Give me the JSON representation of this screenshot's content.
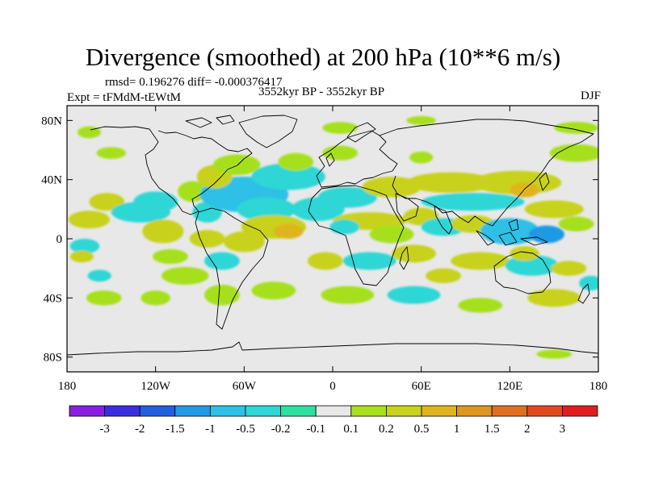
{
  "chart_data": {
    "type": "heatmap",
    "title": "Divergence (smoothed) at 200 hPa (10**6 m/s)",
    "stats_text": "rmsd= 0.196276 diff= -0.000376417",
    "experiment": "Expt = tFMdM-tEWtM",
    "period": "3552kyr BP - 3552kyr BP",
    "season": "DJF",
    "xlabel": "",
    "ylabel": "",
    "x_range": [
      -180,
      180
    ],
    "y_range": [
      -90,
      90
    ],
    "x_ticks": [
      {
        "value": -180,
        "label": "180"
      },
      {
        "value": -120,
        "label": "120W"
      },
      {
        "value": -60,
        "label": "60W"
      },
      {
        "value": 0,
        "label": "0"
      },
      {
        "value": 60,
        "label": "60E"
      },
      {
        "value": 120,
        "label": "120E"
      },
      {
        "value": 180,
        "label": "180"
      }
    ],
    "y_ticks": [
      {
        "value": 80,
        "label": "80N"
      },
      {
        "value": 40,
        "label": "40N"
      },
      {
        "value": 0,
        "label": "0"
      },
      {
        "value": -40,
        "label": "40S"
      },
      {
        "value": -80,
        "label": "80S"
      }
    ],
    "background_color": "#e8e8e8",
    "colorbar": {
      "colors": [
        "#8a1ee0",
        "#3a2ee0",
        "#1f5fe0",
        "#1f9ae6",
        "#2ec0e6",
        "#2ed6d6",
        "#2ee0a0",
        "#e8e8e8",
        "#a6e01e",
        "#c8d21e",
        "#e0b41e",
        "#e0961e",
        "#e0701e",
        "#e04a1e",
        "#e01e1e"
      ],
      "labels": [
        "-3",
        "-2",
        "-1.5",
        "-1",
        "-0.5",
        "-0.2",
        "-0.1",
        "0.1",
        "0.2",
        "0.5",
        "1",
        "1.5",
        "2",
        "3"
      ]
    },
    "anomaly_regions": [
      {
        "lon": -153,
        "lat": 25,
        "rlon": 12,
        "rlat": 6,
        "value": 0.3
      },
      {
        "lon": -165,
        "lat": 13,
        "rlon": 14,
        "rlat": 6,
        "value": 0.5
      },
      {
        "lon": -130,
        "lat": 18,
        "rlon": 20,
        "rlat": 7,
        "value": -0.3
      },
      {
        "lon": -115,
        "lat": 5,
        "rlon": 14,
        "rlat": 8,
        "value": 0.3
      },
      {
        "lon": -120,
        "lat": 25,
        "rlon": 15,
        "rlat": 7,
        "value": -0.3
      },
      {
        "lon": -95,
        "lat": 32,
        "rlon": 10,
        "rlat": 7,
        "value": 0.2
      },
      {
        "lon": -85,
        "lat": 18,
        "rlon": 10,
        "rlat": 7,
        "value": -0.2
      },
      {
        "lon": -60,
        "lat": 30,
        "rlon": 30,
        "rlat": 12,
        "value": -0.5
      },
      {
        "lon": -45,
        "lat": 20,
        "rlon": 20,
        "rlat": 8,
        "value": -0.3
      },
      {
        "lon": -80,
        "lat": 42,
        "rlon": 12,
        "rlat": 8,
        "value": 0.3
      },
      {
        "lon": -65,
        "lat": 50,
        "rlon": 16,
        "rlat": 7,
        "value": 0.2
      },
      {
        "lon": -30,
        "lat": 42,
        "rlon": 25,
        "rlat": 9,
        "value": -0.3
      },
      {
        "lon": -25,
        "lat": 52,
        "rlon": 12,
        "rlat": 6,
        "value": 0.2
      },
      {
        "lon": -40,
        "lat": 8,
        "rlon": 22,
        "rlat": 8,
        "value": 0.5
      },
      {
        "lon": -30,
        "lat": 5,
        "rlon": 10,
        "rlat": 5,
        "value": 1.0
      },
      {
        "lon": -60,
        "lat": -2,
        "rlon": 14,
        "rlat": 7,
        "value": 0.5
      },
      {
        "lon": -85,
        "lat": 0,
        "rlon": 12,
        "rlat": 6,
        "value": 0.3
      },
      {
        "lon": -110,
        "lat": -12,
        "rlon": 12,
        "rlat": 5,
        "value": 0.2
      },
      {
        "lon": -75,
        "lat": -15,
        "rlon": 12,
        "rlat": 6,
        "value": -0.3
      },
      {
        "lon": -100,
        "lat": -25,
        "rlon": 16,
        "rlat": 6,
        "value": 0.2
      },
      {
        "lon": -158,
        "lat": -25,
        "rlon": 8,
        "rlat": 4,
        "value": -0.2
      },
      {
        "lon": -168,
        "lat": -5,
        "rlon": 10,
        "rlat": 5,
        "value": -0.2
      },
      {
        "lon": -170,
        "lat": -12,
        "rlon": 8,
        "rlat": 4,
        "value": 0.3
      },
      {
        "lon": -155,
        "lat": -40,
        "rlon": 12,
        "rlat": 5,
        "value": 0.2
      },
      {
        "lon": -120,
        "lat": -40,
        "rlon": 10,
        "rlat": 5,
        "value": 0.2
      },
      {
        "lon": -75,
        "lat": -38,
        "rlon": 12,
        "rlat": 7,
        "value": 0.2
      },
      {
        "lon": -40,
        "lat": -35,
        "rlon": 15,
        "rlat": 6,
        "value": 0.2
      },
      {
        "lon": -10,
        "lat": 20,
        "rlon": 18,
        "rlat": 8,
        "value": -0.3
      },
      {
        "lon": 10,
        "lat": 28,
        "rlon": 20,
        "rlat": 7,
        "value": -0.3
      },
      {
        "lon": 25,
        "lat": 12,
        "rlon": 25,
        "rlat": 6,
        "value": 0.3
      },
      {
        "lon": 40,
        "lat": 3,
        "rlon": 15,
        "rlat": 6,
        "value": 0.2
      },
      {
        "lon": 8,
        "lat": 8,
        "rlon": 10,
        "rlat": 5,
        "value": -0.2
      },
      {
        "lon": -5,
        "lat": -15,
        "rlon": 12,
        "rlat": 6,
        "value": 0.3
      },
      {
        "lon": 25,
        "lat": -15,
        "rlon": 18,
        "rlat": 6,
        "value": -0.3
      },
      {
        "lon": 55,
        "lat": -10,
        "rlon": 15,
        "rlat": 6,
        "value": 0.3
      },
      {
        "lon": 10,
        "lat": -38,
        "rlon": 18,
        "rlat": 6,
        "value": 0.2
      },
      {
        "lon": 55,
        "lat": -38,
        "rlon": 18,
        "rlat": 6,
        "value": -0.2
      },
      {
        "lon": 75,
        "lat": -25,
        "rlon": 12,
        "rlat": 5,
        "value": 0.3
      },
      {
        "lon": 40,
        "lat": 35,
        "rlon": 20,
        "rlat": 7,
        "value": 0.3
      },
      {
        "lon": 80,
        "lat": 38,
        "rlon": 30,
        "rlat": 7,
        "value": 0.5
      },
      {
        "lon": 125,
        "lat": 38,
        "rlon": 30,
        "rlat": 8,
        "value": 0.5
      },
      {
        "lon": 130,
        "lat": 33,
        "rlon": 10,
        "rlat": 5,
        "value": 1.0
      },
      {
        "lon": 95,
        "lat": 25,
        "rlon": 35,
        "rlat": 6,
        "value": -0.3
      },
      {
        "lon": 60,
        "lat": 15,
        "rlon": 12,
        "rlat": 6,
        "value": 0.5
      },
      {
        "lon": 75,
        "lat": 8,
        "rlon": 15,
        "rlat": 6,
        "value": -0.3
      },
      {
        "lon": 95,
        "lat": 10,
        "rlon": 15,
        "rlat": 6,
        "value": 0.3
      },
      {
        "lon": 120,
        "lat": 5,
        "rlon": 20,
        "rlat": 9,
        "value": -0.5
      },
      {
        "lon": 145,
        "lat": 3,
        "rlon": 12,
        "rlat": 6,
        "value": -1.0
      },
      {
        "lon": 150,
        "lat": 20,
        "rlon": 20,
        "rlat": 6,
        "value": 0.3
      },
      {
        "lon": 165,
        "lat": 10,
        "rlon": 12,
        "rlat": 5,
        "value": 0.2
      },
      {
        "lon": 100,
        "lat": -15,
        "rlon": 20,
        "rlat": 6,
        "value": 0.3
      },
      {
        "lon": 135,
        "lat": -18,
        "rlon": 18,
        "rlat": 7,
        "value": -0.3
      },
      {
        "lon": 130,
        "lat": -10,
        "rlon": 10,
        "rlat": 5,
        "value": 0.3
      },
      {
        "lon": 160,
        "lat": -20,
        "rlon": 12,
        "rlat": 5,
        "value": 0.3
      },
      {
        "lon": 150,
        "lat": -40,
        "rlon": 18,
        "rlat": 6,
        "value": 0.3
      },
      {
        "lon": 100,
        "lat": -45,
        "rlon": 15,
        "rlat": 5,
        "value": 0.2
      },
      {
        "lon": 175,
        "lat": -30,
        "rlon": 8,
        "rlat": 5,
        "value": -0.3
      },
      {
        "lon": 150,
        "lat": -78,
        "rlon": 12,
        "rlat": 3,
        "value": 0.2
      },
      {
        "lon": 5,
        "lat": 58,
        "rlon": 12,
        "rlat": 5,
        "value": 0.2
      },
      {
        "lon": 60,
        "lat": 55,
        "rlon": 8,
        "rlat": 4,
        "value": 0.2
      },
      {
        "lon": 165,
        "lat": 58,
        "rlon": 18,
        "rlat": 6,
        "value": 0.2
      },
      {
        "lon": -150,
        "lat": 58,
        "rlon": 10,
        "rlat": 4,
        "value": 0.2
      },
      {
        "lon": 5,
        "lat": 75,
        "rlon": 12,
        "rlat": 4,
        "value": 0.2
      },
      {
        "lon": 60,
        "lat": 80,
        "rlon": 10,
        "rlat": 3,
        "value": 0.2
      },
      {
        "lon": 165,
        "lat": 75,
        "rlon": 15,
        "rlat": 4,
        "value": 0.2
      },
      {
        "lon": -165,
        "lat": 72,
        "rlon": 8,
        "rlat": 4,
        "value": 0.2
      }
    ]
  }
}
